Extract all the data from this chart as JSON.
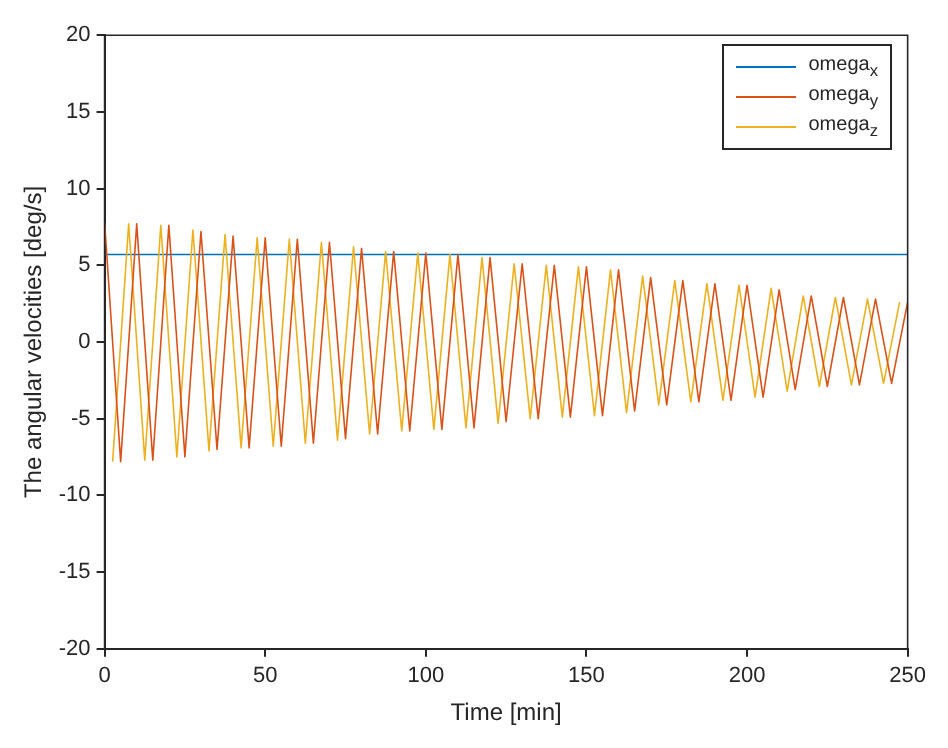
{
  "chart_data": {
    "type": "line",
    "xlabel": "Time [min]",
    "ylabel": "The angular velocities [deg/s]",
    "xlim": [
      0,
      250
    ],
    "xticks": [
      0,
      50,
      100,
      150,
      200,
      250
    ],
    "ylim": [
      -20,
      20
    ],
    "yticks": [
      -20,
      -15,
      -10,
      -5,
      0,
      5,
      10,
      15,
      20
    ],
    "grid": false,
    "legend": "top right",
    "marker": "none",
    "line_style": "solid",
    "series": [
      {
        "name": "omega$_{y}$",
        "color": "#d95319",
        "x": [
          0,
          5,
          10,
          15,
          20,
          25,
          30,
          35,
          40,
          45,
          50,
          55,
          60,
          65,
          70,
          75,
          80,
          85,
          90,
          95,
          100,
          105,
          110,
          115,
          120,
          125,
          130,
          135,
          140,
          145,
          150,
          155,
          160,
          165,
          170,
          175,
          180,
          185,
          190,
          195,
          200,
          205,
          210,
          215,
          220,
          225,
          230,
          235,
          240,
          245,
          250
        ],
        "values": [
          7.8,
          -7.8,
          7.7,
          -7.7,
          7.6,
          -7.5,
          7.2,
          -7.0,
          6.9,
          -6.9,
          6.8,
          -6.8,
          6.7,
          -6.6,
          6.5,
          -6.3,
          6.1,
          -6.0,
          5.9,
          -5.8,
          5.8,
          -5.7,
          5.7,
          -5.6,
          5.5,
          -5.2,
          5.1,
          -5.0,
          5.0,
          -4.9,
          4.9,
          -4.8,
          4.7,
          -4.5,
          4.2,
          -4.1,
          4.0,
          -3.9,
          3.8,
          -3.8,
          3.7,
          -3.6,
          3.4,
          -3.1,
          3.0,
          -2.9,
          2.9,
          -2.8,
          2.8,
          -2.7,
          2.6
        ]
      },
      {
        "name": "omega$_{z}$",
        "color": "#edb120",
        "x": [
          2.5,
          7.5,
          12.5,
          17.5,
          22.5,
          27.5,
          32.5,
          37.5,
          42.5,
          47.5,
          52.5,
          57.5,
          62.5,
          67.5,
          72.5,
          77.5,
          82.5,
          87.5,
          92.5,
          97.5,
          102.5,
          107.5,
          112.5,
          117.5,
          122.5,
          127.5,
          132.5,
          137.5,
          142.5,
          147.5,
          152.5,
          157.5,
          162.5,
          167.5,
          172.5,
          177.5,
          182.5,
          187.5,
          192.5,
          197.5,
          202.5,
          207.5,
          212.5,
          217.5,
          222.5,
          227.5,
          232.5,
          237.5,
          242.5,
          247.5
        ],
        "values": [
          -7.8,
          7.7,
          -7.7,
          7.6,
          -7.5,
          7.3,
          -7.1,
          7.0,
          -6.9,
          6.8,
          -6.8,
          6.7,
          -6.6,
          6.5,
          -6.4,
          6.2,
          -6.0,
          5.9,
          -5.8,
          5.8,
          -5.7,
          5.7,
          -5.6,
          5.5,
          -5.3,
          5.1,
          -5.0,
          5.0,
          -4.9,
          4.9,
          -4.8,
          4.7,
          -4.6,
          4.3,
          -4.1,
          4.0,
          -3.9,
          3.8,
          -3.8,
          3.7,
          -3.6,
          3.5,
          -3.2,
          3.0,
          -2.9,
          2.9,
          -2.8,
          2.8,
          -2.7,
          2.6
        ]
      },
      {
        "name": "omega$_{x}$",
        "color": "#0072bd",
        "x": [
          0,
          250
        ],
        "values": [
          5.7,
          5.7
        ]
      }
    ]
  }
}
